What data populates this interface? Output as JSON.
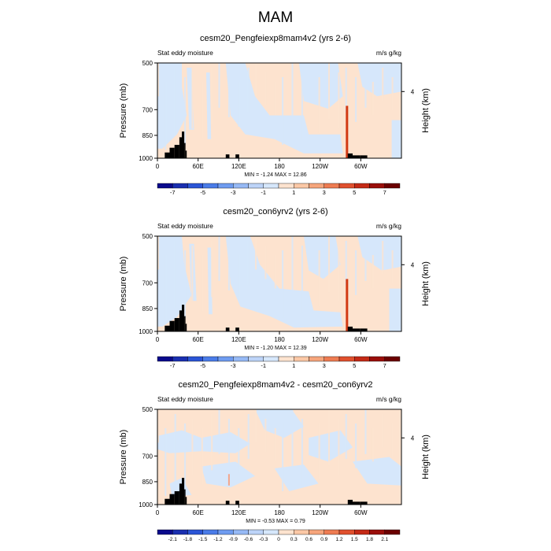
{
  "figure_title": "MAM",
  "chart_data": [
    {
      "type": "heatmap",
      "title": "cesm20_Pengfeiexp8mam4v2 (yrs 2-6)",
      "left_label": "Stat eddy moisture",
      "right_label": "m/s g/kg",
      "ylabel": "Pressure (mb)",
      "right_axis_label": "Height (km)",
      "right_ticks": [
        "4"
      ],
      "xticks": [
        "0",
        "60E",
        "120E",
        "180",
        "120W",
        "60W"
      ],
      "yticks": [
        "500",
        "700",
        "850",
        "1000"
      ],
      "stats": "MIN = -1.24  MAX = 12.86",
      "colorbar": {
        "labels": [
          "-7",
          "-5",
          "-3",
          "-1",
          "1",
          "3",
          "5",
          "7"
        ],
        "colors": [
          "#0a0a8c",
          "#1a2fb0",
          "#2b55d6",
          "#4a7ce8",
          "#6f9cf0",
          "#96b9f5",
          "#bdd4f8",
          "#d6e7fb",
          "#fde3cf",
          "#fbc8a6",
          "#f6a57c",
          "#ee7c52",
          "#e0502e",
          "#c42a16",
          "#9a0e0a",
          "#6b0000"
        ]
      }
    },
    {
      "type": "heatmap",
      "title": "cesm20_con6yrv2 (yrs 2-6)",
      "left_label": "Stat eddy moisture",
      "right_label": "m/s g/kg",
      "ylabel": "Pressure (mb)",
      "right_axis_label": "Height (km)",
      "right_ticks": [
        "4"
      ],
      "xticks": [
        "0",
        "60E",
        "120E",
        "180",
        "120W",
        "60W"
      ],
      "yticks": [
        "500",
        "700",
        "850",
        "1000"
      ],
      "stats": "MIN = -1.20  MAX = 12.39",
      "colorbar": {
        "labels": [
          "-7",
          "-5",
          "-3",
          "-1",
          "1",
          "3",
          "5",
          "7"
        ],
        "colors": [
          "#0a0a8c",
          "#1a2fb0",
          "#2b55d6",
          "#4a7ce8",
          "#6f9cf0",
          "#96b9f5",
          "#bdd4f8",
          "#d6e7fb",
          "#fde3cf",
          "#fbc8a6",
          "#f6a57c",
          "#ee7c52",
          "#e0502e",
          "#c42a16",
          "#9a0e0a",
          "#6b0000"
        ]
      }
    },
    {
      "type": "heatmap",
      "title": "cesm20_Pengfeiexp8mam4v2 - cesm20_con6yrv2",
      "left_label": "Stat eddy moisture",
      "right_label": "m/s g/kg",
      "ylabel": "Pressure (mb)",
      "right_axis_label": "Height (km)",
      "right_ticks": [
        "4"
      ],
      "xticks": [
        "0",
        "60E",
        "120E",
        "180",
        "120W",
        "60W"
      ],
      "yticks": [
        "500",
        "700",
        "850",
        "1000"
      ],
      "stats": "MIN = -0.53  MAX =  0.79",
      "colorbar": {
        "labels": [
          "-2.1",
          "-1.8",
          "-1.5",
          "-1.2",
          "-0.9",
          "-0.6",
          "-0.3",
          "0",
          "0.3",
          "0.6",
          "0.9",
          "1.2",
          "1.5",
          "1.8",
          "2.1"
        ],
        "colors": [
          "#0a0a8c",
          "#1a2fb0",
          "#2b55d6",
          "#4a7ce8",
          "#6f9cf0",
          "#96b9f5",
          "#bdd4f8",
          "#d6e7fb",
          "#fde3cf",
          "#fbc8a6",
          "#f6a57c",
          "#ee7c52",
          "#e0502e",
          "#c42a16",
          "#9a0e0a",
          "#6b0000"
        ]
      }
    }
  ],
  "colors": {
    "negative_fill": "#d6e7fb",
    "positive_fill": "#fde3cf",
    "topography": "#000000",
    "red_streak": "#d23a14"
  }
}
